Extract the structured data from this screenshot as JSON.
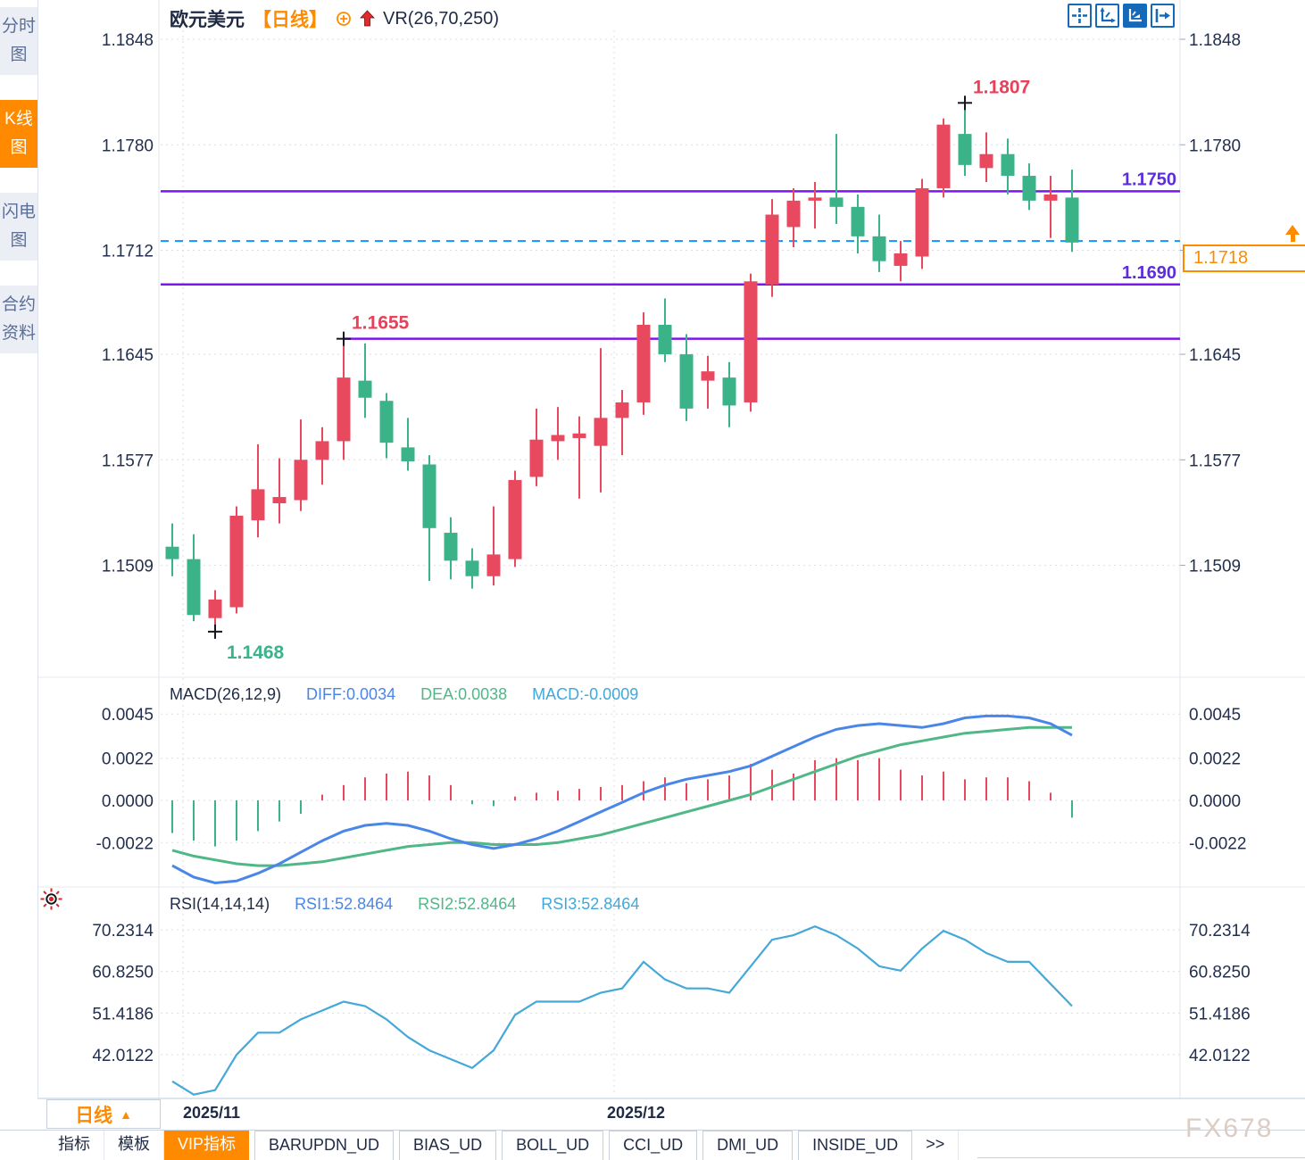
{
  "sidebar": {
    "items": [
      {
        "label": "分时图",
        "active": false
      },
      {
        "label": "K线图",
        "active": true
      },
      {
        "label": "闪电图",
        "active": false
      },
      {
        "label": "合约资料",
        "active": false
      }
    ]
  },
  "header": {
    "symbol": "欧元美元",
    "period": "【日线】",
    "indicator_label": "VR(26,70,250)"
  },
  "price_panel": {
    "axis_labels": [
      "1.1848",
      "1.1780",
      "1.1712",
      "1.1645",
      "1.1577",
      "1.1509"
    ],
    "level_labels": {
      "r1": "1.1750",
      "s1": "1.1690"
    },
    "annotation_labels": {
      "high": "1.1807",
      "swing_high": "1.1655",
      "low": "1.1468"
    },
    "current_price": "1.1718"
  },
  "macd_panel": {
    "title": "MACD(26,12,9)",
    "diff_label": "DIFF:0.0034",
    "dea_label": "DEA:0.0038",
    "macd_label": "MACD:-0.0009",
    "axis_labels": [
      "0.0045",
      "0.0022",
      "0.0000",
      "-0.0022"
    ]
  },
  "rsi_panel": {
    "title": "RSI(14,14,14)",
    "rsi1_label": "RSI1:52.8464",
    "rsi2_label": "RSI2:52.8464",
    "rsi3_label": "RSI3:52.8464",
    "axis_labels": [
      "70.2314",
      "60.8250",
      "51.4186",
      "42.0122"
    ]
  },
  "xaxis": {
    "dates": [
      "2025/11",
      "2025/12"
    ]
  },
  "bottom_bar": {
    "period_button": {
      "label": "日线",
      "arrow": "▲"
    },
    "tabs": [
      {
        "label": "指标",
        "active": false
      },
      {
        "label": "模板",
        "active": false
      },
      {
        "label": "VIP指标",
        "active": true
      },
      {
        "label": "BARUPDN_UD",
        "active": false
      },
      {
        "label": "BIAS_UD",
        "active": false
      },
      {
        "label": "BOLL_UD",
        "active": false
      },
      {
        "label": "CCI_UD",
        "active": false
      },
      {
        "label": "DMI_UD",
        "active": false
      },
      {
        "label": "INSIDE_UD",
        "active": false
      },
      {
        "label": ">>",
        "active": false
      }
    ]
  },
  "watermark": "FX678",
  "colors": {
    "up": "#e8495f",
    "down": "#3bb389",
    "level_line": "#7b16f2",
    "level_text": "#5c2ddb",
    "current_line": "#1e8fff",
    "accent_orange": "#ff8a00",
    "diff_line": "#4a86e8",
    "dea_line": "#50b787",
    "rsi_line": "#44a8d8",
    "axis_text": "#232f4e",
    "annotation_red": "#e8415a",
    "annotation_green": "#3bb389"
  },
  "chart_data": [
    {
      "type": "candlestick",
      "symbol": "欧元美元",
      "timeframe": "日线",
      "y_axis_ticks": [
        1.1848,
        1.178,
        1.1712,
        1.1645,
        1.1577,
        1.1509
      ],
      "x_month_labels": [
        "2025/11",
        "2025/12"
      ],
      "horizontal_levels": [
        1.175,
        1.169,
        1.1655
      ],
      "current_price": 1.1718,
      "annotations": [
        {
          "text": "1.1807",
          "type": "high",
          "candle_index": 37
        },
        {
          "text": "1.1655",
          "type": "swing_high",
          "candle_index": 8
        },
        {
          "text": "1.1468",
          "type": "low",
          "candle_index": 2
        }
      ],
      "ohlc": [
        [
          1.1521,
          1.1536,
          1.1502,
          1.1513
        ],
        [
          1.1513,
          1.1529,
          1.1473,
          1.1477
        ],
        [
          1.1475,
          1.1493,
          1.1468,
          1.1487
        ],
        [
          1.1482,
          1.1547,
          1.1478,
          1.1541
        ],
        [
          1.1538,
          1.1587,
          1.1527,
          1.1558
        ],
        [
          1.1549,
          1.1578,
          1.1536,
          1.1553
        ],
        [
          1.1551,
          1.1603,
          1.1544,
          1.1577
        ],
        [
          1.1577,
          1.1598,
          1.1561,
          1.1589
        ],
        [
          1.1589,
          1.1655,
          1.1577,
          1.163
        ],
        [
          1.1628,
          1.1652,
          1.1604,
          1.1617
        ],
        [
          1.1615,
          1.162,
          1.1578,
          1.1588
        ],
        [
          1.1585,
          1.1604,
          1.157,
          1.1576
        ],
        [
          1.1574,
          1.158,
          1.1499,
          1.1533
        ],
        [
          1.153,
          1.154,
          1.15,
          1.1512
        ],
        [
          1.1512,
          1.152,
          1.1494,
          1.1502
        ],
        [
          1.1502,
          1.1547,
          1.1496,
          1.1516
        ],
        [
          1.1513,
          1.157,
          1.1508,
          1.1564
        ],
        [
          1.1566,
          1.161,
          1.156,
          1.159
        ],
        [
          1.1589,
          1.1611,
          1.1577,
          1.1593
        ],
        [
          1.1591,
          1.1605,
          1.1552,
          1.1594
        ],
        [
          1.1586,
          1.1649,
          1.1556,
          1.1604
        ],
        [
          1.1604,
          1.1622,
          1.158,
          1.1614
        ],
        [
          1.1614,
          1.1672,
          1.1606,
          1.1664
        ],
        [
          1.1664,
          1.1681,
          1.164,
          1.1645
        ],
        [
          1.1645,
          1.1658,
          1.1602,
          1.161
        ],
        [
          1.1628,
          1.1644,
          1.161,
          1.1634
        ],
        [
          1.163,
          1.164,
          1.1598,
          1.1612
        ],
        [
          1.1614,
          1.1697,
          1.1608,
          1.1692
        ],
        [
          1.169,
          1.1745,
          1.1682,
          1.1735
        ],
        [
          1.1727,
          1.1752,
          1.1714,
          1.1744
        ],
        [
          1.1744,
          1.1756,
          1.1726,
          1.1746
        ],
        [
          1.1746,
          1.1787,
          1.1729,
          1.174
        ],
        [
          1.174,
          1.1748,
          1.171,
          1.1721
        ],
        [
          1.1721,
          1.1735,
          1.1698,
          1.1705
        ],
        [
          1.1702,
          1.1718,
          1.1692,
          1.171
        ],
        [
          1.1708,
          1.1758,
          1.17,
          1.1752
        ],
        [
          1.1752,
          1.1797,
          1.1746,
          1.1793
        ],
        [
          1.1787,
          1.1807,
          1.176,
          1.1767
        ],
        [
          1.1765,
          1.1788,
          1.1756,
          1.1774
        ],
        [
          1.1774,
          1.1784,
          1.1748,
          1.176
        ],
        [
          1.176,
          1.1768,
          1.1738,
          1.1744
        ],
        [
          1.1744,
          1.176,
          1.172,
          1.1748
        ],
        [
          1.1746,
          1.1764,
          1.1711,
          1.1717
        ]
      ]
    },
    {
      "type": "bar",
      "name": "MACD(26,12,9)",
      "y_axis_ticks": [
        0.0045,
        0.0022,
        0.0,
        -0.0022
      ],
      "histogram": [
        -0.0017,
        -0.0021,
        -0.0024,
        -0.0021,
        -0.0016,
        -0.0011,
        -0.0007,
        0.0003,
        0.0008,
        0.0012,
        0.0014,
        0.0015,
        0.0013,
        0.0008,
        -0.0002,
        -0.0003,
        0.0002,
        0.0004,
        0.0005,
        0.0006,
        0.0007,
        0.0008,
        0.001,
        0.0012,
        0.0009,
        0.0011,
        0.0013,
        0.0019,
        0.0016,
        0.0014,
        0.0021,
        0.0022,
        0.0021,
        0.0022,
        0.0016,
        0.0013,
        0.0015,
        0.0011,
        0.0012,
        0.0012,
        0.001,
        0.0004,
        -0.0009
      ],
      "series": [
        {
          "name": "DIFF",
          "values": [
            -0.0034,
            -0.004,
            -0.0043,
            -0.0042,
            -0.0038,
            -0.0033,
            -0.0027,
            -0.0021,
            -0.0016,
            -0.0013,
            -0.0012,
            -0.0013,
            -0.0016,
            -0.002,
            -0.0023,
            -0.0025,
            -0.0023,
            -0.002,
            -0.0016,
            -0.0011,
            -0.0006,
            -0.0001,
            0.0004,
            0.0008,
            0.0011,
            0.0013,
            0.0015,
            0.0018,
            0.0023,
            0.0028,
            0.0033,
            0.0037,
            0.0039,
            0.004,
            0.0039,
            0.0038,
            0.004,
            0.0043,
            0.0044,
            0.0044,
            0.0043,
            0.004,
            0.0034
          ]
        },
        {
          "name": "DEA",
          "values": [
            -0.0026,
            -0.0029,
            -0.0031,
            -0.0033,
            -0.0034,
            -0.0034,
            -0.0033,
            -0.0032,
            -0.003,
            -0.0028,
            -0.0026,
            -0.0024,
            -0.0023,
            -0.0022,
            -0.0022,
            -0.0023,
            -0.0023,
            -0.0023,
            -0.0022,
            -0.002,
            -0.0018,
            -0.0015,
            -0.0012,
            -0.0009,
            -0.0006,
            -0.0003,
            0.0,
            0.0003,
            0.0007,
            0.0011,
            0.0015,
            0.0019,
            0.0023,
            0.0026,
            0.0029,
            0.0031,
            0.0033,
            0.0035,
            0.0036,
            0.0037,
            0.0038,
            0.0038,
            0.0038
          ]
        }
      ],
      "latest": {
        "DIFF": 0.0034,
        "DEA": 0.0038,
        "MACD": -0.0009
      }
    },
    {
      "type": "line",
      "name": "RSI(14,14,14)",
      "y_axis_ticks": [
        70.2314,
        60.825,
        51.4186,
        42.0122
      ],
      "note": "RSI1, RSI2 and RSI3 overlap (identical values)",
      "values": [
        36,
        33,
        34,
        42,
        47,
        47,
        50,
        52,
        54,
        53,
        50,
        46,
        43,
        41,
        39,
        43,
        51,
        54,
        54,
        54,
        56,
        57,
        63,
        59,
        57,
        57,
        56,
        62,
        68,
        69,
        71,
        69,
        66,
        62,
        61,
        66,
        70,
        68,
        65,
        63,
        63,
        58,
        53
      ],
      "latest": {
        "RSI1": 52.8464,
        "RSI2": 52.8464,
        "RSI3": 52.8464
      }
    }
  ]
}
